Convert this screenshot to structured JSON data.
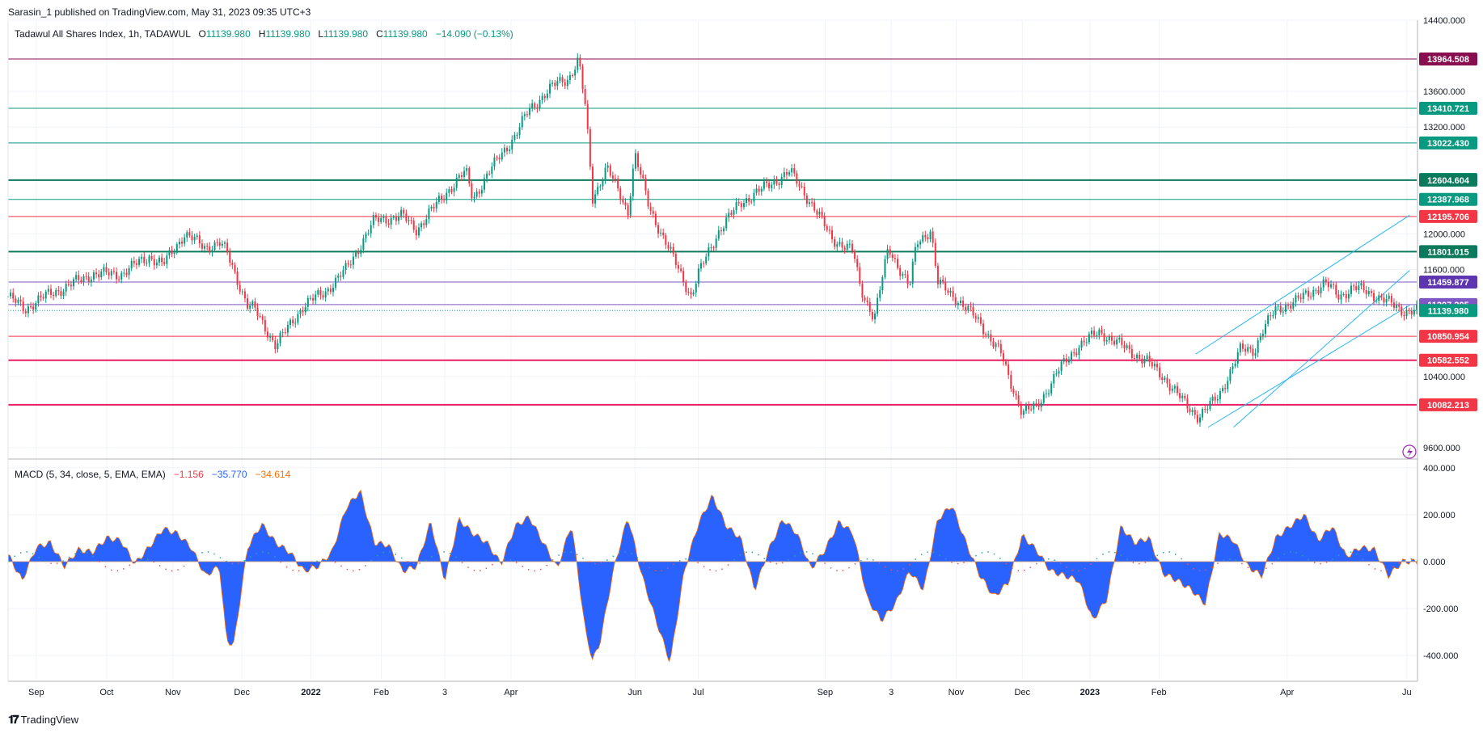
{
  "header": {
    "published": "Sarasin_1 published on TradingView.com, May 31, 2023 09:35 UTC+3"
  },
  "legend": {
    "symbol": "Tadawul All Shares Index, 1h, TADAWUL",
    "o_label": "O",
    "o_value": "11139.980",
    "h_label": "H",
    "h_value": "11139.980",
    "l_label": "L",
    "l_value": "11139.980",
    "c_label": "C",
    "c_value": "11139.980",
    "change": "−14.090 (−0.13%)"
  },
  "macd_legend": {
    "label": "MACD (5, 34, close, 5, EMA, EMA)",
    "v1": "−1.156",
    "v2": "−35.770",
    "v3": "−34.614"
  },
  "brand": {
    "text": "TradingView",
    "icon": "tradingview-logo-icon"
  },
  "colors": {
    "up": "#089981",
    "down": "#f23645",
    "macd_fill": "#2962ff",
    "teal_level": "#089981",
    "red_level": "#f23645",
    "purple_level": "#7e57c2",
    "dark_red_level": "#880e4f",
    "channel": "#29b6f6"
  },
  "chart_data": [
    {
      "type": "line",
      "name_hint": "price",
      "ylim": [
        9500,
        14400
      ],
      "y_ticks": [
        {
          "value": 14400,
          "label": "14400.000"
        },
        {
          "value": 13600,
          "label": "13600.000"
        },
        {
          "value": 13200,
          "label": "13200.000"
        },
        {
          "value": 12000,
          "label": "12000.000"
        },
        {
          "value": 11600,
          "label": "11600.000"
        },
        {
          "value": 10400,
          "label": "10400.000"
        },
        {
          "value": 9600,
          "label": "9600.000"
        }
      ],
      "x_ticks": [
        {
          "t": 0.02,
          "label": "Sep",
          "bold": false
        },
        {
          "t": 0.07,
          "label": "Oct",
          "bold": false
        },
        {
          "t": 0.117,
          "label": "Nov",
          "bold": false
        },
        {
          "t": 0.166,
          "label": "Dec",
          "bold": false
        },
        {
          "t": 0.215,
          "label": "2022",
          "bold": true
        },
        {
          "t": 0.265,
          "label": "Feb",
          "bold": false
        },
        {
          "t": 0.31,
          "label": "3",
          "bold": false
        },
        {
          "t": 0.357,
          "label": "Apr",
          "bold": false
        },
        {
          "t": 0.445,
          "label": "Jun",
          "bold": false
        },
        {
          "t": 0.49,
          "label": "Jul",
          "bold": false
        },
        {
          "t": 0.58,
          "label": "Sep",
          "bold": false
        },
        {
          "t": 0.627,
          "label": "3",
          "bold": false
        },
        {
          "t": 0.673,
          "label": "Nov",
          "bold": false
        },
        {
          "t": 0.72,
          "label": "Dec",
          "bold": false
        },
        {
          "t": 0.768,
          "label": "2023",
          "bold": true
        },
        {
          "t": 0.817,
          "label": "Feb",
          "bold": false
        },
        {
          "t": 0.908,
          "label": "Apr",
          "bold": false
        },
        {
          "t": 0.993,
          "label": "Ju",
          "bold": false
        }
      ],
      "x": [
        0.0,
        0.012,
        0.02,
        0.04,
        0.06,
        0.08,
        0.1,
        0.11,
        0.125,
        0.14,
        0.15,
        0.155,
        0.17,
        0.175,
        0.19,
        0.21,
        0.225,
        0.24,
        0.26,
        0.28,
        0.29,
        0.31,
        0.325,
        0.33,
        0.35,
        0.36,
        0.37,
        0.39,
        0.398,
        0.405,
        0.41,
        0.415,
        0.425,
        0.44,
        0.445,
        0.455,
        0.47,
        0.485,
        0.49,
        0.505,
        0.52,
        0.54,
        0.555,
        0.57,
        0.585,
        0.6,
        0.605,
        0.615,
        0.625,
        0.64,
        0.645,
        0.655,
        0.66,
        0.675,
        0.69,
        0.705,
        0.71,
        0.72,
        0.73,
        0.745,
        0.76,
        0.775,
        0.79,
        0.81,
        0.82,
        0.835,
        0.845,
        0.855,
        0.86,
        0.875,
        0.885,
        0.89,
        0.9,
        0.915,
        0.935,
        0.945,
        0.955,
        0.965,
        0.975,
        0.985,
        0.99
      ],
      "values": [
        11300,
        11150,
        11250,
        11400,
        11550,
        11550,
        11750,
        11650,
        12000,
        11850,
        11900,
        11800,
        11200,
        11150,
        10750,
        11200,
        11350,
        11600,
        12150,
        12200,
        12050,
        12450,
        12700,
        12400,
        12900,
        13100,
        13400,
        13700,
        13750,
        13950,
        13400,
        12400,
        12750,
        12250,
        12900,
        12300,
        11800,
        11300,
        11550,
        12050,
        12350,
        12550,
        12700,
        12350,
        11950,
        11800,
        11400,
        11050,
        11850,
        11400,
        11900,
        12050,
        11450,
        11250,
        11000,
        10650,
        10400,
        10000,
        10050,
        10450,
        10750,
        10900,
        10750,
        10550,
        10400,
        10100,
        9950,
        10100,
        10200,
        10700,
        10700,
        10900,
        11150,
        11250,
        11450,
        11300,
        11400,
        11350,
        11280,
        11180,
        11139.98
      ],
      "levels": [
        {
          "value": 13964.508,
          "label": "13964.508",
          "color": "#880e4f",
          "tag": "#880e4f",
          "w": 1
        },
        {
          "value": 13410.721,
          "label": "13410.721",
          "color": "#089981",
          "tag": "#089981",
          "w": 1
        },
        {
          "value": 13022.43,
          "label": "13022.430",
          "color": "#089981",
          "tag": "#089981",
          "w": 1
        },
        {
          "value": 12612.272,
          "label": "12612.272",
          "color": "#089981",
          "tag": "#089981",
          "w": 0
        },
        {
          "value": 12604.604,
          "label": "12604.604",
          "color": "#0b7a5c",
          "tag": "#0b7a5c",
          "w": 2
        },
        {
          "value": 12387.968,
          "label": "12387.968",
          "color": "#089981",
          "tag": "#089981",
          "w": 1
        },
        {
          "value": 12195.706,
          "label": "12195.706",
          "color": "#f23645",
          "tag": "#f23645",
          "w": 1
        },
        {
          "value": 11801.015,
          "label": "11801.015",
          "color": "#0b7a5c",
          "tag": "#0b7a5c",
          "w": 2
        },
        {
          "value": 11459.877,
          "label": "11459.877",
          "color": "#7e57c2",
          "tag": "#5e35b1",
          "w": 1
        },
        {
          "value": 11207.205,
          "label": "11207.205",
          "color": "#7e57c2",
          "tag": "#7e57c2",
          "w": 1
        },
        {
          "value": 11139.98,
          "label": "11139.980",
          "color": "#089981",
          "tag": "#089981",
          "w": 0
        },
        {
          "value": 10850.954,
          "label": "10850.954",
          "color": "#f23645",
          "tag": "#f23645",
          "w": 1
        },
        {
          "value": 10582.552,
          "label": "10582.552",
          "color": "#e91e63",
          "tag": "#f23645",
          "w": 2
        },
        {
          "value": 10082.213,
          "label": "10082.213",
          "color": "#e91e63",
          "tag": "#f23645",
          "w": 2
        }
      ]
    },
    {
      "type": "area",
      "name_hint": "macd",
      "ylim": [
        -500,
        420
      ],
      "y_ticks": [
        {
          "value": 400,
          "label": "400.000"
        },
        {
          "value": 200,
          "label": "200.000"
        },
        {
          "value": 0,
          "label": "0.000"
        },
        {
          "value": -200,
          "label": "-200.000"
        },
        {
          "value": -400,
          "label": "-400.000"
        }
      ],
      "x": [
        0.0,
        0.01,
        0.02,
        0.03,
        0.04,
        0.05,
        0.06,
        0.07,
        0.08,
        0.09,
        0.1,
        0.11,
        0.12,
        0.13,
        0.14,
        0.15,
        0.155,
        0.16,
        0.165,
        0.17,
        0.18,
        0.19,
        0.2,
        0.21,
        0.22,
        0.23,
        0.24,
        0.25,
        0.26,
        0.27,
        0.28,
        0.29,
        0.3,
        0.31,
        0.32,
        0.33,
        0.34,
        0.35,
        0.36,
        0.37,
        0.38,
        0.39,
        0.4,
        0.41,
        0.415,
        0.42,
        0.43,
        0.44,
        0.45,
        0.46,
        0.47,
        0.48,
        0.49,
        0.5,
        0.51,
        0.52,
        0.53,
        0.54,
        0.55,
        0.56,
        0.57,
        0.58,
        0.59,
        0.6,
        0.61,
        0.62,
        0.63,
        0.64,
        0.65,
        0.66,
        0.67,
        0.68,
        0.69,
        0.7,
        0.71,
        0.72,
        0.73,
        0.74,
        0.75,
        0.76,
        0.77,
        0.78,
        0.79,
        0.8,
        0.81,
        0.82,
        0.83,
        0.84,
        0.85,
        0.86,
        0.87,
        0.88,
        0.89,
        0.9,
        0.91,
        0.92,
        0.93,
        0.94,
        0.95,
        0.96,
        0.97,
        0.98,
        0.99
      ],
      "values": [
        30,
        -80,
        60,
        80,
        -20,
        50,
        40,
        100,
        90,
        -10,
        60,
        140,
        120,
        60,
        -60,
        -20,
        -330,
        -360,
        -150,
        60,
        160,
        80,
        40,
        -40,
        -20,
        40,
        230,
        300,
        80,
        70,
        -40,
        -20,
        170,
        -80,
        180,
        120,
        80,
        -10,
        150,
        190,
        80,
        -30,
        160,
        -300,
        -420,
        -350,
        -30,
        190,
        -60,
        -250,
        -430,
        -40,
        160,
        280,
        150,
        100,
        -120,
        50,
        180,
        120,
        -30,
        50,
        170,
        120,
        -160,
        -250,
        -180,
        -40,
        -120,
        180,
        240,
        80,
        -60,
        -150,
        -90,
        110,
        50,
        -40,
        -60,
        -80,
        -250,
        -160,
        150,
        80,
        100,
        -50,
        -80,
        -120,
        -180,
        120,
        90,
        -20,
        -60,
        100,
        150,
        200,
        90,
        150,
        20,
        60,
        50,
        -60,
        0
      ]
    }
  ]
}
